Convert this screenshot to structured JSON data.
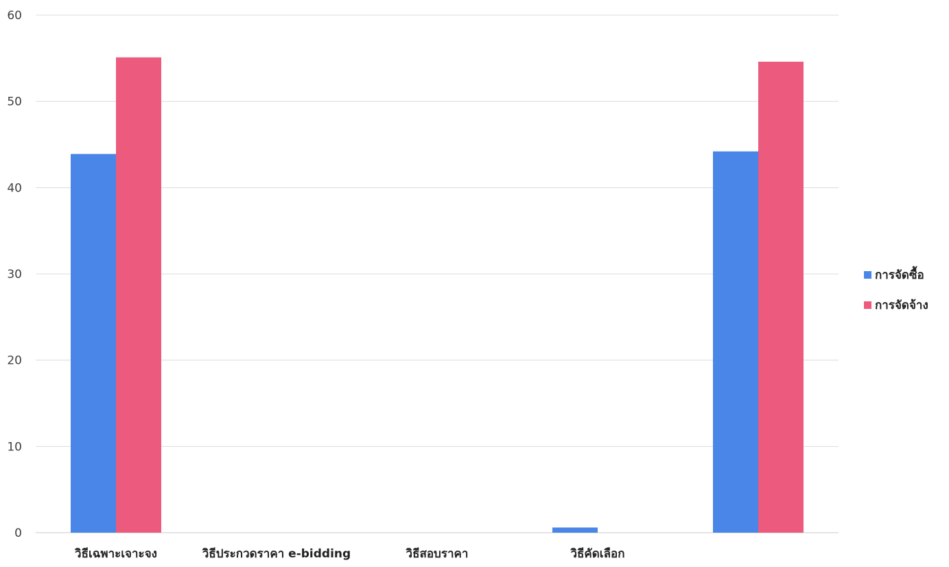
{
  "chart_data": {
    "type": "bar",
    "categories": [
      "วิธีเฉพาะเจาะจง",
      "วิธีประกวดราคา e-bidding",
      "วิธีสอบราคา",
      "วิธีคัดเลือก",
      ""
    ],
    "series": [
      {
        "name": "การจัดซื้อ",
        "color": "#4a86e8",
        "values": [
          43.9,
          0,
          0,
          0.6,
          44.2
        ]
      },
      {
        "name": "การจัดจ้าง",
        "color": "#ec5b7d",
        "values": [
          55.1,
          0,
          0,
          0,
          54.6
        ]
      }
    ],
    "ylim": [
      0,
      60
    ],
    "yticks": [
      "0",
      "10",
      "20",
      "30",
      "40",
      "50",
      "60"
    ],
    "grid": true,
    "legend_position": "right"
  }
}
